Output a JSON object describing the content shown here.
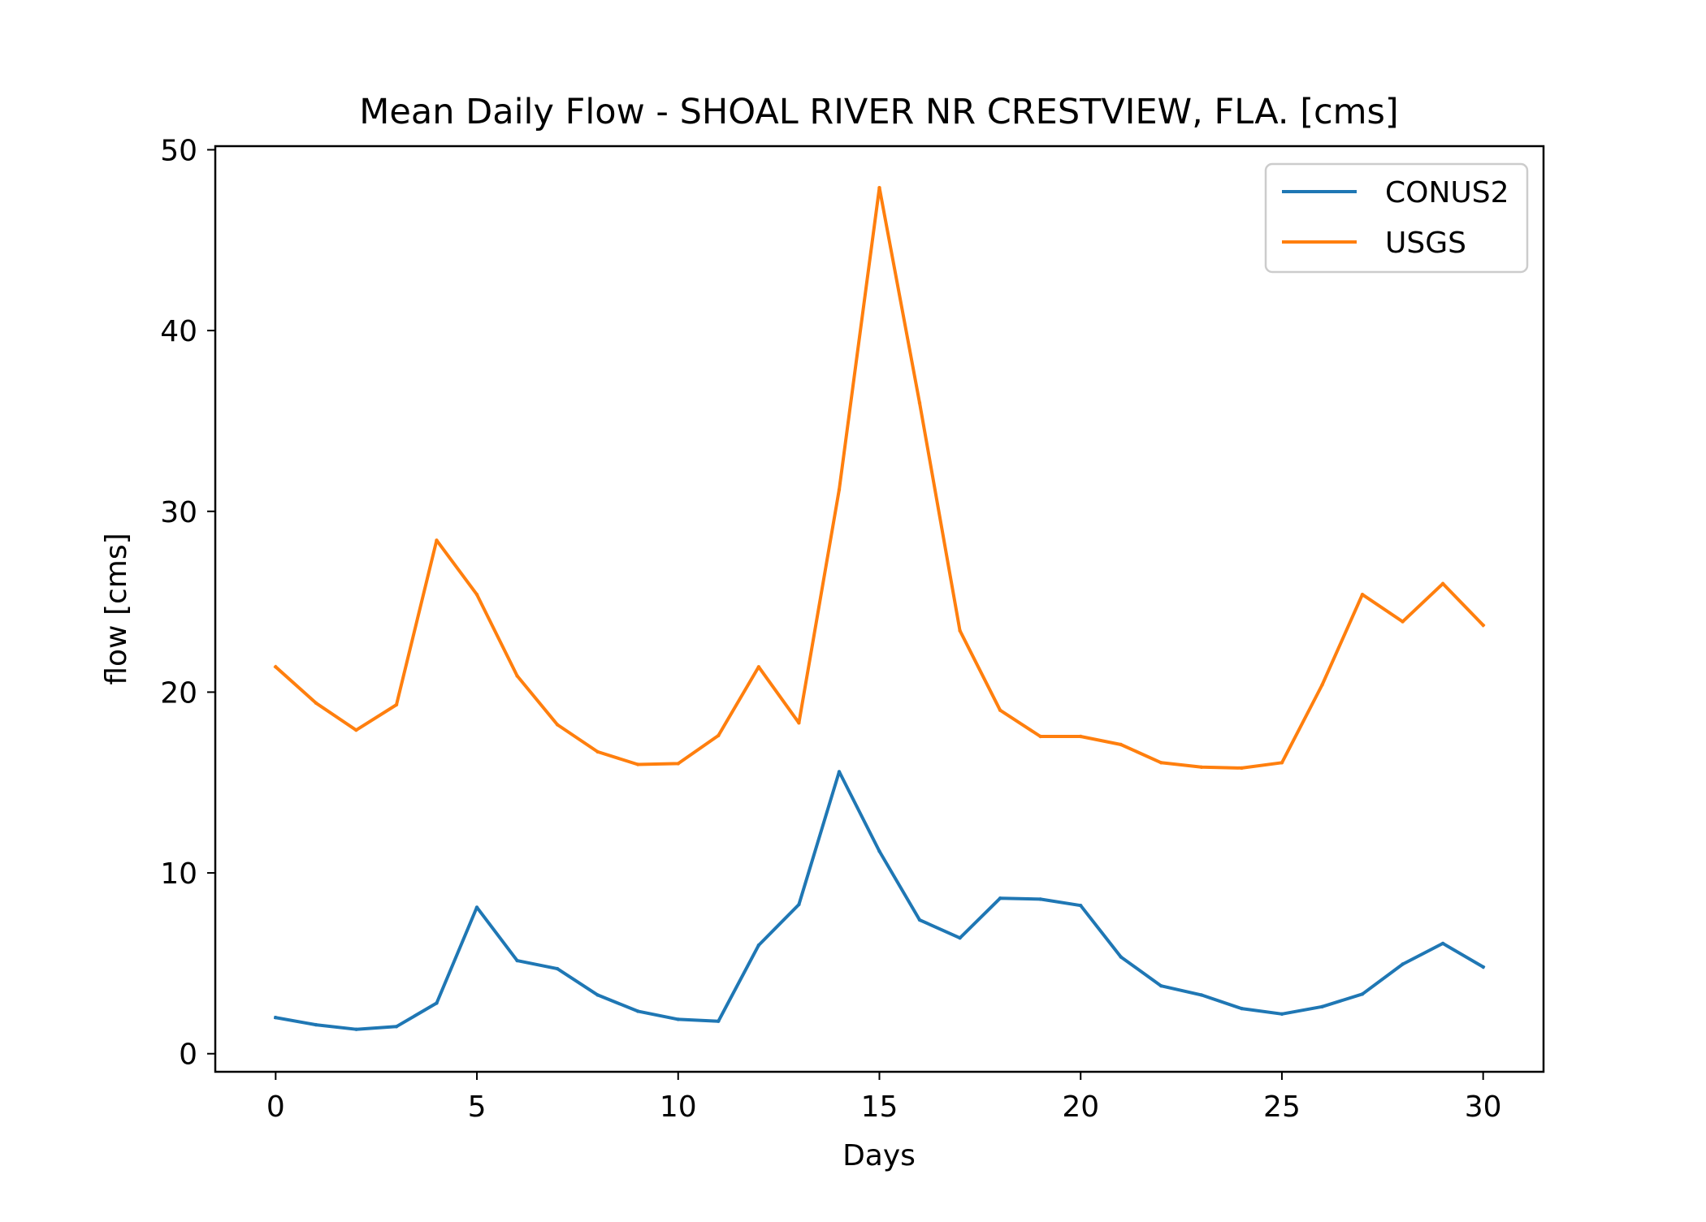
{
  "chart_data": {
    "type": "line",
    "title": "Mean Daily Flow - SHOAL RIVER NR CRESTVIEW, FLA. [cms]",
    "xlabel": "Days",
    "ylabel": "flow [cms]",
    "xlim": [
      -1.5,
      31.5
    ],
    "ylim": [
      -1,
      50.2
    ],
    "xticks": [
      0,
      5,
      10,
      15,
      20,
      25,
      30
    ],
    "xtick_labels": [
      "0",
      "5",
      "10",
      "15",
      "20",
      "25",
      "30"
    ],
    "yticks": [
      0,
      10,
      20,
      30,
      40,
      50
    ],
    "ytick_labels": [
      "0",
      "10",
      "20",
      "30",
      "40",
      "50"
    ],
    "grid": false,
    "legend_position": "top-right",
    "x": [
      0,
      1,
      2,
      3,
      4,
      5,
      6,
      7,
      8,
      9,
      10,
      11,
      12,
      13,
      14,
      15,
      16,
      17,
      18,
      19,
      20,
      21,
      22,
      23,
      24,
      25,
      26,
      27,
      28,
      29,
      30
    ],
    "series": [
      {
        "name": "CONUS2",
        "color": "#1f77b4",
        "values": [
          2.0,
          1.6,
          1.35,
          1.5,
          2.8,
          8.1,
          5.15,
          4.7,
          3.25,
          2.35,
          1.9,
          1.8,
          6.0,
          8.25,
          15.6,
          11.2,
          7.4,
          6.4,
          8.6,
          8.55,
          8.2,
          5.35,
          3.75,
          3.25,
          2.5,
          2.2,
          2.6,
          3.3,
          4.95,
          6.1,
          4.8
        ]
      },
      {
        "name": "USGS",
        "color": "#ff7f0e",
        "values": [
          21.4,
          19.4,
          17.9,
          19.3,
          28.4,
          25.4,
          20.9,
          18.2,
          16.7,
          16.0,
          16.05,
          17.6,
          21.4,
          18.3,
          31.2,
          47.9,
          36.0,
          23.4,
          19.0,
          17.55,
          17.55,
          17.1,
          16.1,
          15.85,
          15.8,
          16.1,
          20.4,
          25.4,
          23.9,
          26.0,
          23.7
        ]
      }
    ]
  }
}
